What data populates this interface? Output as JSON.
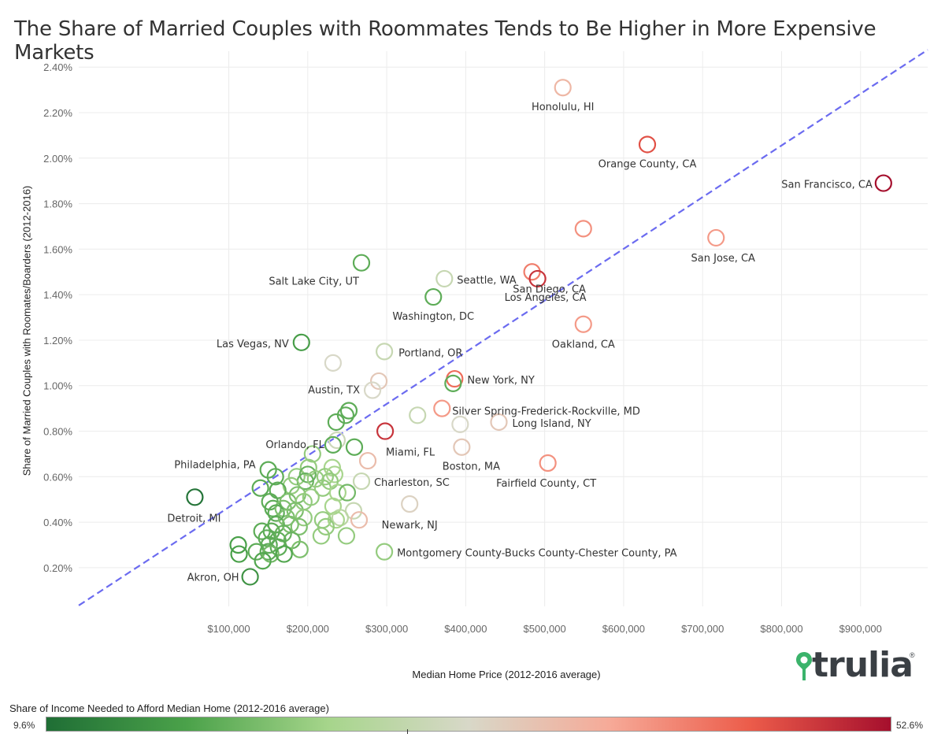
{
  "title": "The Share of Married Couples with Roommates Tends to Be Higher in More Expensive Markets",
  "chart_data": {
    "type": "scatter",
    "title": "The Share of Married Couples with Roommates Tends to Be Higher in More Expensive Markets",
    "xlabel": "Median Home Price (2012-2016 average)",
    "ylabel": "Share of Married Couples with Roomates/Boarders (2012-2016)",
    "xlim": [
      -90000,
      985000
    ],
    "ylim": [
      0.0003,
      0.0247
    ],
    "x_ticks": [
      100000,
      200000,
      300000,
      400000,
      500000,
      600000,
      700000,
      800000,
      900000
    ],
    "x_tick_labels": [
      "$100,000",
      "$200,000",
      "$300,000",
      "$400,000",
      "$500,000",
      "$600,000",
      "$700,000",
      "$800,000",
      "$900,000"
    ],
    "y_ticks": [
      0.002,
      0.004,
      0.006,
      0.008,
      0.01,
      0.012,
      0.014,
      0.016,
      0.018,
      0.02,
      0.022,
      0.024
    ],
    "y_tick_labels": [
      "0.20%",
      "0.40%",
      "0.60%",
      "0.80%",
      "1.00%",
      "1.20%",
      "1.40%",
      "1.60%",
      "1.80%",
      "2.00%",
      "2.20%",
      "2.40%"
    ],
    "grid": true,
    "trendline": {
      "x": [
        -90000,
        985000
      ],
      "y": [
        0.00034,
        0.02476
      ],
      "style": "dashed",
      "color": "#6b6bf0"
    },
    "color_legend": {
      "title": "Share of Income Needed to Afford Median Home (2012-2016 average)",
      "min_label": "9.6%",
      "max_label": "52.6%",
      "min": 9.6,
      "max": 52.6,
      "colors": [
        "#1f6e35",
        "#4ba24a",
        "#a6d58b",
        "#d8d8c8",
        "#f6aa98",
        "#ec5c4a",
        "#a50f2d"
      ]
    },
    "points": [
      {
        "label": "Honolulu, HI",
        "x": 523000,
        "y": 0.0231,
        "c": 0.62
      },
      {
        "label": "Orange County, CA",
        "x": 630000,
        "y": 0.0206,
        "c": 0.86
      },
      {
        "label": "San Francisco, CA",
        "x": 929000,
        "y": 0.0189,
        "c": 1.0
      },
      {
        "label": "",
        "x": 549000,
        "y": 0.0169,
        "c": 0.72
      },
      {
        "label": "San Jose, CA",
        "x": 717000,
        "y": 0.0165,
        "c": 0.7
      },
      {
        "label": "San Diego, CA",
        "x": 484000,
        "y": 0.015,
        "c": 0.76
      },
      {
        "label": "Los Angeles, CA",
        "x": 491000,
        "y": 0.0147,
        "c": 0.92
      },
      {
        "label": "Salt Lake City, UT",
        "x": 268000,
        "y": 0.0154,
        "c": 0.2
      },
      {
        "label": "Seattle, WA",
        "x": 373000,
        "y": 0.0147,
        "c": 0.44
      },
      {
        "label": "Washington, DC",
        "x": 359000,
        "y": 0.0139,
        "c": 0.2
      },
      {
        "label": "Oakland, CA",
        "x": 549000,
        "y": 0.0127,
        "c": 0.7
      },
      {
        "label": "Las Vegas, NV",
        "x": 192000,
        "y": 0.0119,
        "c": 0.15
      },
      {
        "label": "Portland, OR",
        "x": 297000,
        "y": 0.0115,
        "c": 0.44
      },
      {
        "label": "",
        "x": 232000,
        "y": 0.011,
        "c": 0.5
      },
      {
        "label": "New York, NY",
        "x": 386000,
        "y": 0.0103,
        "c": 0.8
      },
      {
        "label": "",
        "x": 384000,
        "y": 0.0101,
        "c": 0.2
      },
      {
        "label": "",
        "x": 290000,
        "y": 0.0102,
        "c": 0.56
      },
      {
        "label": "Austin, TX",
        "x": 282000,
        "y": 0.0098,
        "c": 0.5
      },
      {
        "label": "Silver Spring-Frederick-Rockville, MD",
        "x": 370000,
        "y": 0.009,
        "c": 0.7
      },
      {
        "label": "",
        "x": 252000,
        "y": 0.0089,
        "c": 0.2
      },
      {
        "label": "",
        "x": 248000,
        "y": 0.0087,
        "c": 0.2
      },
      {
        "label": "",
        "x": 339000,
        "y": 0.0087,
        "c": 0.44
      },
      {
        "label": "Long Island, NY",
        "x": 442000,
        "y": 0.0084,
        "c": 0.56
      },
      {
        "label": "",
        "x": 393000,
        "y": 0.0083,
        "c": 0.5
      },
      {
        "label": "",
        "x": 236000,
        "y": 0.0084,
        "c": 0.2
      },
      {
        "label": "Miami, FL",
        "x": 298000,
        "y": 0.008,
        "c": 0.92
      },
      {
        "label": "Orlando, FL",
        "x": 237000,
        "y": 0.0076,
        "c": 0.46
      },
      {
        "label": "",
        "x": 232000,
        "y": 0.0074,
        "c": 0.2
      },
      {
        "label": "",
        "x": 259000,
        "y": 0.0073,
        "c": 0.2
      },
      {
        "label": "Boston, MA",
        "x": 395000,
        "y": 0.0073,
        "c": 0.56
      },
      {
        "label": "",
        "x": 206000,
        "y": 0.007,
        "c": 0.3
      },
      {
        "label": "",
        "x": 276000,
        "y": 0.0067,
        "c": 0.6
      },
      {
        "label": "Fairfield County, CT",
        "x": 504000,
        "y": 0.0066,
        "c": 0.72
      },
      {
        "label": "Philadelphia, PA",
        "x": 150000,
        "y": 0.0063,
        "c": 0.2
      },
      {
        "label": "",
        "x": 201000,
        "y": 0.0064,
        "c": 0.3
      },
      {
        "label": "",
        "x": 231000,
        "y": 0.0064,
        "c": 0.34
      },
      {
        "label": "",
        "x": 159000,
        "y": 0.006,
        "c": 0.2
      },
      {
        "label": "",
        "x": 186000,
        "y": 0.006,
        "c": 0.3
      },
      {
        "label": "",
        "x": 200000,
        "y": 0.0061,
        "c": 0.22
      },
      {
        "label": "",
        "x": 222000,
        "y": 0.006,
        "c": 0.3
      },
      {
        "label": "",
        "x": 234000,
        "y": 0.0061,
        "c": 0.34
      },
      {
        "label": "Charleston, SC",
        "x": 268000,
        "y": 0.0058,
        "c": 0.44
      },
      {
        "label": "",
        "x": 197000,
        "y": 0.0058,
        "c": 0.22
      },
      {
        "label": "",
        "x": 210000,
        "y": 0.0059,
        "c": 0.3
      },
      {
        "label": "",
        "x": 228000,
        "y": 0.0058,
        "c": 0.3
      },
      {
        "label": "",
        "x": 179000,
        "y": 0.0056,
        "c": 0.3
      },
      {
        "label": "",
        "x": 140000,
        "y": 0.0055,
        "c": 0.2
      },
      {
        "label": "",
        "x": 162000,
        "y": 0.0054,
        "c": 0.2
      },
      {
        "label": "",
        "x": 219000,
        "y": 0.0055,
        "c": 0.3
      },
      {
        "label": "",
        "x": 238000,
        "y": 0.0053,
        "c": 0.34
      },
      {
        "label": "",
        "x": 250000,
        "y": 0.0053,
        "c": 0.24
      },
      {
        "label": "",
        "x": 187000,
        "y": 0.0052,
        "c": 0.26
      },
      {
        "label": "",
        "x": 204000,
        "y": 0.0051,
        "c": 0.3
      },
      {
        "label": "Detroit, MI",
        "x": 57000,
        "y": 0.0051,
        "c": 0.02
      },
      {
        "label": "",
        "x": 152000,
        "y": 0.0049,
        "c": 0.2
      },
      {
        "label": "",
        "x": 175000,
        "y": 0.0049,
        "c": 0.26
      },
      {
        "label": "",
        "x": 195000,
        "y": 0.0049,
        "c": 0.3
      },
      {
        "label": "",
        "x": 156000,
        "y": 0.0046,
        "c": 0.2
      },
      {
        "label": "",
        "x": 169000,
        "y": 0.0046,
        "c": 0.26
      },
      {
        "label": "",
        "x": 184000,
        "y": 0.0045,
        "c": 0.26
      },
      {
        "label": "",
        "x": 232000,
        "y": 0.0047,
        "c": 0.34
      },
      {
        "label": "Newark, NJ",
        "x": 329000,
        "y": 0.0048,
        "c": 0.52
      },
      {
        "label": "",
        "x": 160000,
        "y": 0.0044,
        "c": 0.2
      },
      {
        "label": "",
        "x": 258000,
        "y": 0.0045,
        "c": 0.44
      },
      {
        "label": "",
        "x": 241000,
        "y": 0.0042,
        "c": 0.4
      },
      {
        "label": "",
        "x": 173000,
        "y": 0.0042,
        "c": 0.26
      },
      {
        "label": "",
        "x": 195000,
        "y": 0.0042,
        "c": 0.3
      },
      {
        "label": "",
        "x": 219000,
        "y": 0.0041,
        "c": 0.3
      },
      {
        "label": "",
        "x": 236000,
        "y": 0.0041,
        "c": 0.34
      },
      {
        "label": "",
        "x": 265000,
        "y": 0.0041,
        "c": 0.6
      },
      {
        "label": "",
        "x": 160000,
        "y": 0.0039,
        "c": 0.2
      },
      {
        "label": "",
        "x": 178000,
        "y": 0.0039,
        "c": 0.26
      },
      {
        "label": "",
        "x": 189000,
        "y": 0.0038,
        "c": 0.26
      },
      {
        "label": "",
        "x": 223000,
        "y": 0.0038,
        "c": 0.3
      },
      {
        "label": "",
        "x": 142000,
        "y": 0.0036,
        "c": 0.2
      },
      {
        "label": "",
        "x": 154000,
        "y": 0.0036,
        "c": 0.2
      },
      {
        "label": "",
        "x": 169000,
        "y": 0.0035,
        "c": 0.22
      },
      {
        "label": "",
        "x": 217000,
        "y": 0.0034,
        "c": 0.3
      },
      {
        "label": "",
        "x": 249000,
        "y": 0.0034,
        "c": 0.3
      },
      {
        "label": "",
        "x": 148000,
        "y": 0.0033,
        "c": 0.2
      },
      {
        "label": "",
        "x": 162000,
        "y": 0.0032,
        "c": 0.2
      },
      {
        "label": "",
        "x": 180000,
        "y": 0.0032,
        "c": 0.22
      },
      {
        "label": "",
        "x": 112000,
        "y": 0.003,
        "c": 0.16
      },
      {
        "label": "",
        "x": 151000,
        "y": 0.003,
        "c": 0.2
      },
      {
        "label": "",
        "x": 163000,
        "y": 0.0029,
        "c": 0.2
      },
      {
        "label": "",
        "x": 190000,
        "y": 0.0028,
        "c": 0.26
      },
      {
        "label": "",
        "x": 135000,
        "y": 0.0027,
        "c": 0.2
      },
      {
        "label": "",
        "x": 150000,
        "y": 0.0027,
        "c": 0.2
      },
      {
        "label": "Montgomery County-Bucks County-Chester County, PA",
        "x": 297000,
        "y": 0.0027,
        "c": 0.3
      },
      {
        "label": "",
        "x": 113000,
        "y": 0.0026,
        "c": 0.16
      },
      {
        "label": "",
        "x": 153000,
        "y": 0.0026,
        "c": 0.24
      },
      {
        "label": "",
        "x": 170000,
        "y": 0.0026,
        "c": 0.18
      },
      {
        "label": "",
        "x": 143000,
        "y": 0.0023,
        "c": 0.18
      },
      {
        "label": "Akron, OH",
        "x": 127000,
        "y": 0.0016,
        "c": 0.12
      }
    ]
  }
}
